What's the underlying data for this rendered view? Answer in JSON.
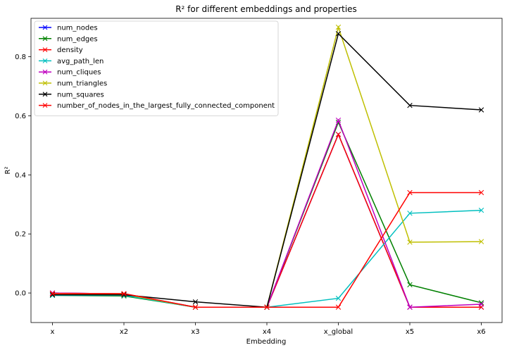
{
  "chart_data": {
    "type": "line",
    "title": "R² for different embeddings and properties",
    "xlabel": "Embedding",
    "ylabel": "R²",
    "categories": [
      "x",
      "x2",
      "x3",
      "x4",
      "x_global",
      "x5",
      "x6"
    ],
    "ylim": [
      -0.1,
      0.93
    ],
    "yticks": [
      0.0,
      0.2,
      0.4,
      0.6,
      0.8
    ],
    "ytick_labels": [
      "0.0",
      "0.2",
      "0.4",
      "0.6",
      "0.8"
    ],
    "marker": "x",
    "grid": false,
    "legend_position": "top-left",
    "series": [
      {
        "name": "num_nodes",
        "color": "#0000ff",
        "values": [
          0.0,
          -0.003,
          -0.048,
          -0.048,
          0.537,
          -0.048,
          -0.048
        ]
      },
      {
        "name": "num_edges",
        "color": "#008000",
        "values": [
          -0.008,
          -0.01,
          -0.048,
          -0.048,
          0.578,
          0.028,
          -0.033
        ]
      },
      {
        "name": "density",
        "color": "#ff0000",
        "values": [
          0.0,
          -0.003,
          -0.048,
          -0.048,
          0.537,
          -0.048,
          -0.048
        ]
      },
      {
        "name": "avg_path_len",
        "color": "#00bfbf",
        "values": [
          -0.008,
          -0.008,
          -0.048,
          -0.048,
          -0.018,
          0.27,
          0.28
        ]
      },
      {
        "name": "num_cliques",
        "color": "#bf00bf",
        "values": [
          0.0,
          -0.003,
          -0.048,
          -0.048,
          0.585,
          -0.048,
          -0.038
        ]
      },
      {
        "name": "num_triangles",
        "color": "#bfbf00",
        "values": [
          -0.002,
          -0.004,
          -0.048,
          -0.048,
          0.9,
          0.172,
          0.174
        ]
      },
      {
        "name": "num_squares",
        "color": "#000000",
        "values": [
          -0.006,
          -0.006,
          -0.03,
          -0.048,
          0.878,
          0.635,
          0.62
        ]
      },
      {
        "name": "number_of_nodes_in_the_largest_fully_connected_component",
        "color": "#ff0000",
        "values": [
          -0.002,
          -0.002,
          -0.048,
          -0.048,
          -0.048,
          0.34,
          0.34
        ]
      }
    ]
  }
}
